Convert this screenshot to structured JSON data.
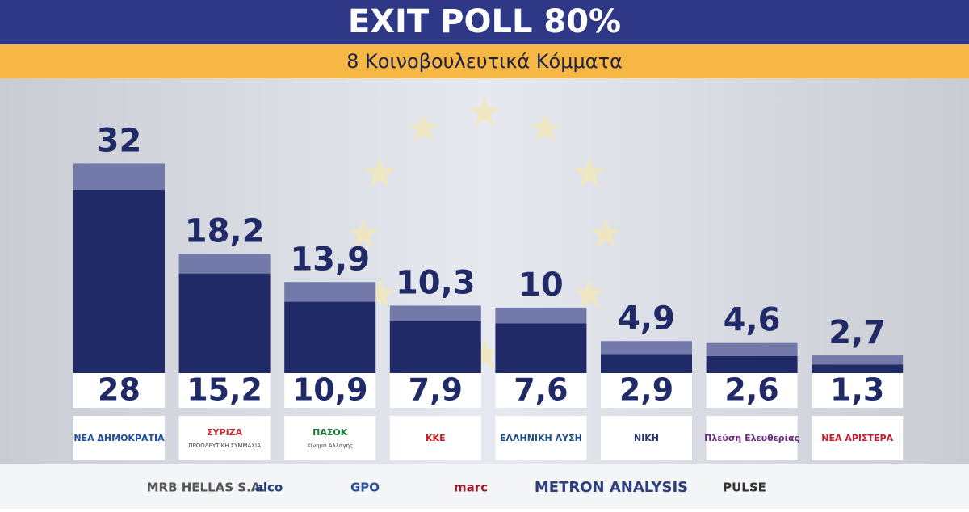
{
  "header": {
    "title": "EXIT POLL 80%",
    "subtitle": "8 Κοινοβουλευτικά Κόμματα"
  },
  "chart_data": {
    "type": "range-bar",
    "categories": [
      "ΝΕΑ ΔΗΜΟΚΡΑΤΙΑ",
      "ΣΥΡΙΖΑ",
      "ΠΑΣΟΚ",
      "ΚΚΕ",
      "ΕΛΛΗΝΙΚΗ ΛΥΣΗ",
      "ΝΙΚΗ",
      "Πλεύση Ελευθερίας",
      "ΝΕΑ ΑΡΙΣΤΕΡΑ"
    ],
    "category_sublabels": [
      null,
      "ΠΡΟΟΔΕΥΤΙΚΗ ΣΥΜΜΑΧΙΑ",
      "Κίνημα Αλλαγής",
      null,
      null,
      null,
      null,
      null
    ],
    "series": [
      {
        "color": "#1f2a66",
        "values": [
          28,
          15.2,
          10.9,
          7.9,
          7.6,
          2.9,
          2.6,
          1.3
        ],
        "value_labels": [
          "28",
          "15,2",
          "10,9",
          "7,9",
          "7,6",
          "2,9",
          "2,6",
          "1,3"
        ]
      },
      {
        "color": "#737aa9",
        "values": [
          32,
          18.2,
          13.9,
          10.3,
          10,
          4.9,
          4.6,
          2.7
        ],
        "value_labels": [
          "32",
          "18,2",
          "13,9",
          "10,3",
          "10",
          "4,9",
          "4,6",
          "2,7"
        ]
      }
    ],
    "ylim": [
      0,
      36
    ]
  },
  "pollsters": [
    "MRB HELLAS S.A.",
    "alco",
    "GPO",
    "marc",
    "METRON ANALYSIS",
    "PULSE"
  ]
}
